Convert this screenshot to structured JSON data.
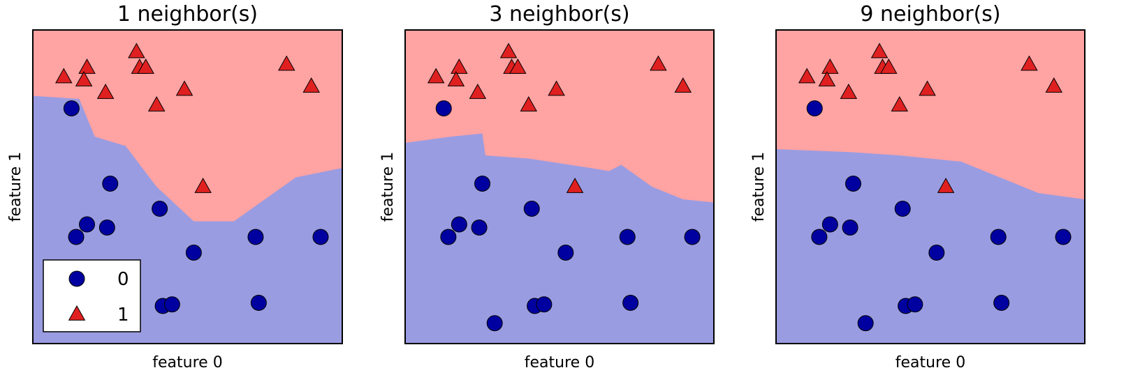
{
  "chart_data": [
    {
      "type": "scatter",
      "title": "1 neighbor(s)",
      "xlabel": "feature 0",
      "ylabel": "feature 1",
      "xlim": [
        0,
        10
      ],
      "ylim": [
        0,
        10
      ],
      "ticks": "none",
      "legend": {
        "placement": "lower-left",
        "entries": [
          "0",
          "1"
        ]
      },
      "regions": {
        "upper_class": "1",
        "lower_class": "0",
        "upper_color": "#ffa3a3",
        "lower_color": "#9a9ce1"
      },
      "boundary": [
        [
          0,
          7.9
        ],
        [
          1.5,
          7.8
        ],
        [
          2.0,
          6.6
        ],
        [
          3.0,
          6.3
        ],
        [
          4.0,
          5.0
        ],
        [
          5.2,
          3.9
        ],
        [
          6.5,
          3.9
        ],
        [
          8.5,
          5.3
        ],
        [
          10.0,
          5.6
        ]
      ],
      "series": [
        {
          "name": "0",
          "color": "#0000a0",
          "marker": "circle",
          "points": [
            [
              1.25,
              7.5
            ],
            [
              2.5,
              5.1
            ],
            [
              4.1,
              4.3
            ],
            [
              1.75,
              3.8
            ],
            [
              2.4,
              3.7
            ],
            [
              1.4,
              3.4
            ],
            [
              7.2,
              3.4
            ],
            [
              5.2,
              2.9
            ],
            [
              9.3,
              3.4
            ],
            [
              4.2,
              1.2
            ],
            [
              4.5,
              1.25
            ],
            [
              7.3,
              1.3
            ]
          ]
        },
        {
          "name": "1",
          "color": "#e02020",
          "marker": "triangle",
          "points": [
            [
              3.35,
              9.3
            ],
            [
              1.75,
              8.8
            ],
            [
              3.45,
              8.8
            ],
            [
              3.65,
              8.8
            ],
            [
              1.0,
              8.5
            ],
            [
              1.65,
              8.4
            ],
            [
              2.35,
              8.0
            ],
            [
              4.0,
              7.6
            ],
            [
              4.9,
              8.1
            ],
            [
              8.2,
              8.9
            ],
            [
              9.0,
              8.2
            ],
            [
              5.5,
              5.0
            ]
          ]
        }
      ]
    },
    {
      "type": "scatter",
      "title": "3 neighbor(s)",
      "xlabel": "feature 0",
      "ylabel": "feature 1",
      "xlim": [
        0,
        10
      ],
      "ylim": [
        0,
        10
      ],
      "ticks": "none",
      "regions": {
        "upper_class": "1",
        "lower_class": "0",
        "upper_color": "#ffa3a3",
        "lower_color": "#9a9ce1"
      },
      "boundary": [
        [
          0,
          6.4
        ],
        [
          1.5,
          6.6
        ],
        [
          2.5,
          6.7
        ],
        [
          2.6,
          6.0
        ],
        [
          4.0,
          5.9
        ],
        [
          6.0,
          5.6
        ],
        [
          6.6,
          5.5
        ],
        [
          7.0,
          5.7
        ],
        [
          8.0,
          5.0
        ],
        [
          9.0,
          4.6
        ],
        [
          10.0,
          4.5
        ]
      ],
      "series": [
        {
          "name": "0",
          "color": "#0000a0",
          "marker": "circle",
          "points": [
            [
              1.25,
              7.5
            ],
            [
              2.5,
              5.1
            ],
            [
              4.1,
              4.3
            ],
            [
              1.75,
              3.8
            ],
            [
              2.4,
              3.7
            ],
            [
              1.4,
              3.4
            ],
            [
              7.2,
              3.4
            ],
            [
              5.2,
              2.9
            ],
            [
              9.3,
              3.4
            ],
            [
              4.2,
              1.2
            ],
            [
              4.5,
              1.25
            ],
            [
              7.3,
              1.3
            ],
            [
              2.9,
              0.65
            ]
          ]
        },
        {
          "name": "1",
          "color": "#e02020",
          "marker": "triangle",
          "points": [
            [
              3.35,
              9.3
            ],
            [
              1.75,
              8.8
            ],
            [
              3.45,
              8.8
            ],
            [
              3.65,
              8.8
            ],
            [
              1.0,
              8.5
            ],
            [
              1.65,
              8.4
            ],
            [
              2.35,
              8.0
            ],
            [
              4.0,
              7.6
            ],
            [
              4.9,
              8.1
            ],
            [
              8.2,
              8.9
            ],
            [
              9.0,
              8.2
            ],
            [
              5.5,
              5.0
            ]
          ]
        }
      ]
    },
    {
      "type": "scatter",
      "title": "9 neighbor(s)",
      "xlabel": "feature 0",
      "ylabel": "feature 1",
      "xlim": [
        0,
        10
      ],
      "ylim": [
        0,
        10
      ],
      "ticks": "none",
      "regions": {
        "upper_class": "1",
        "lower_class": "0",
        "upper_color": "#ffa3a3",
        "lower_color": "#9a9ce1"
      },
      "boundary": [
        [
          0,
          6.2
        ],
        [
          2.5,
          6.1
        ],
        [
          4.0,
          6.0
        ],
        [
          6.0,
          5.8
        ],
        [
          7.0,
          5.4
        ],
        [
          8.5,
          4.8
        ],
        [
          10.0,
          4.6
        ]
      ],
      "series": [
        {
          "name": "0",
          "color": "#0000a0",
          "marker": "circle",
          "points": [
            [
              1.25,
              7.5
            ],
            [
              2.5,
              5.1
            ],
            [
              4.1,
              4.3
            ],
            [
              1.75,
              3.8
            ],
            [
              2.4,
              3.7
            ],
            [
              1.4,
              3.4
            ],
            [
              7.2,
              3.4
            ],
            [
              5.2,
              2.9
            ],
            [
              9.3,
              3.4
            ],
            [
              4.2,
              1.2
            ],
            [
              4.5,
              1.25
            ],
            [
              7.3,
              1.3
            ],
            [
              2.9,
              0.65
            ]
          ]
        },
        {
          "name": "1",
          "color": "#e02020",
          "marker": "triangle",
          "points": [
            [
              3.35,
              9.3
            ],
            [
              1.75,
              8.8
            ],
            [
              3.45,
              8.8
            ],
            [
              3.65,
              8.8
            ],
            [
              1.0,
              8.5
            ],
            [
              1.65,
              8.4
            ],
            [
              2.35,
              8.0
            ],
            [
              4.0,
              7.6
            ],
            [
              4.9,
              8.1
            ],
            [
              8.2,
              8.9
            ],
            [
              9.0,
              8.2
            ],
            [
              5.5,
              5.0
            ]
          ]
        }
      ]
    }
  ]
}
